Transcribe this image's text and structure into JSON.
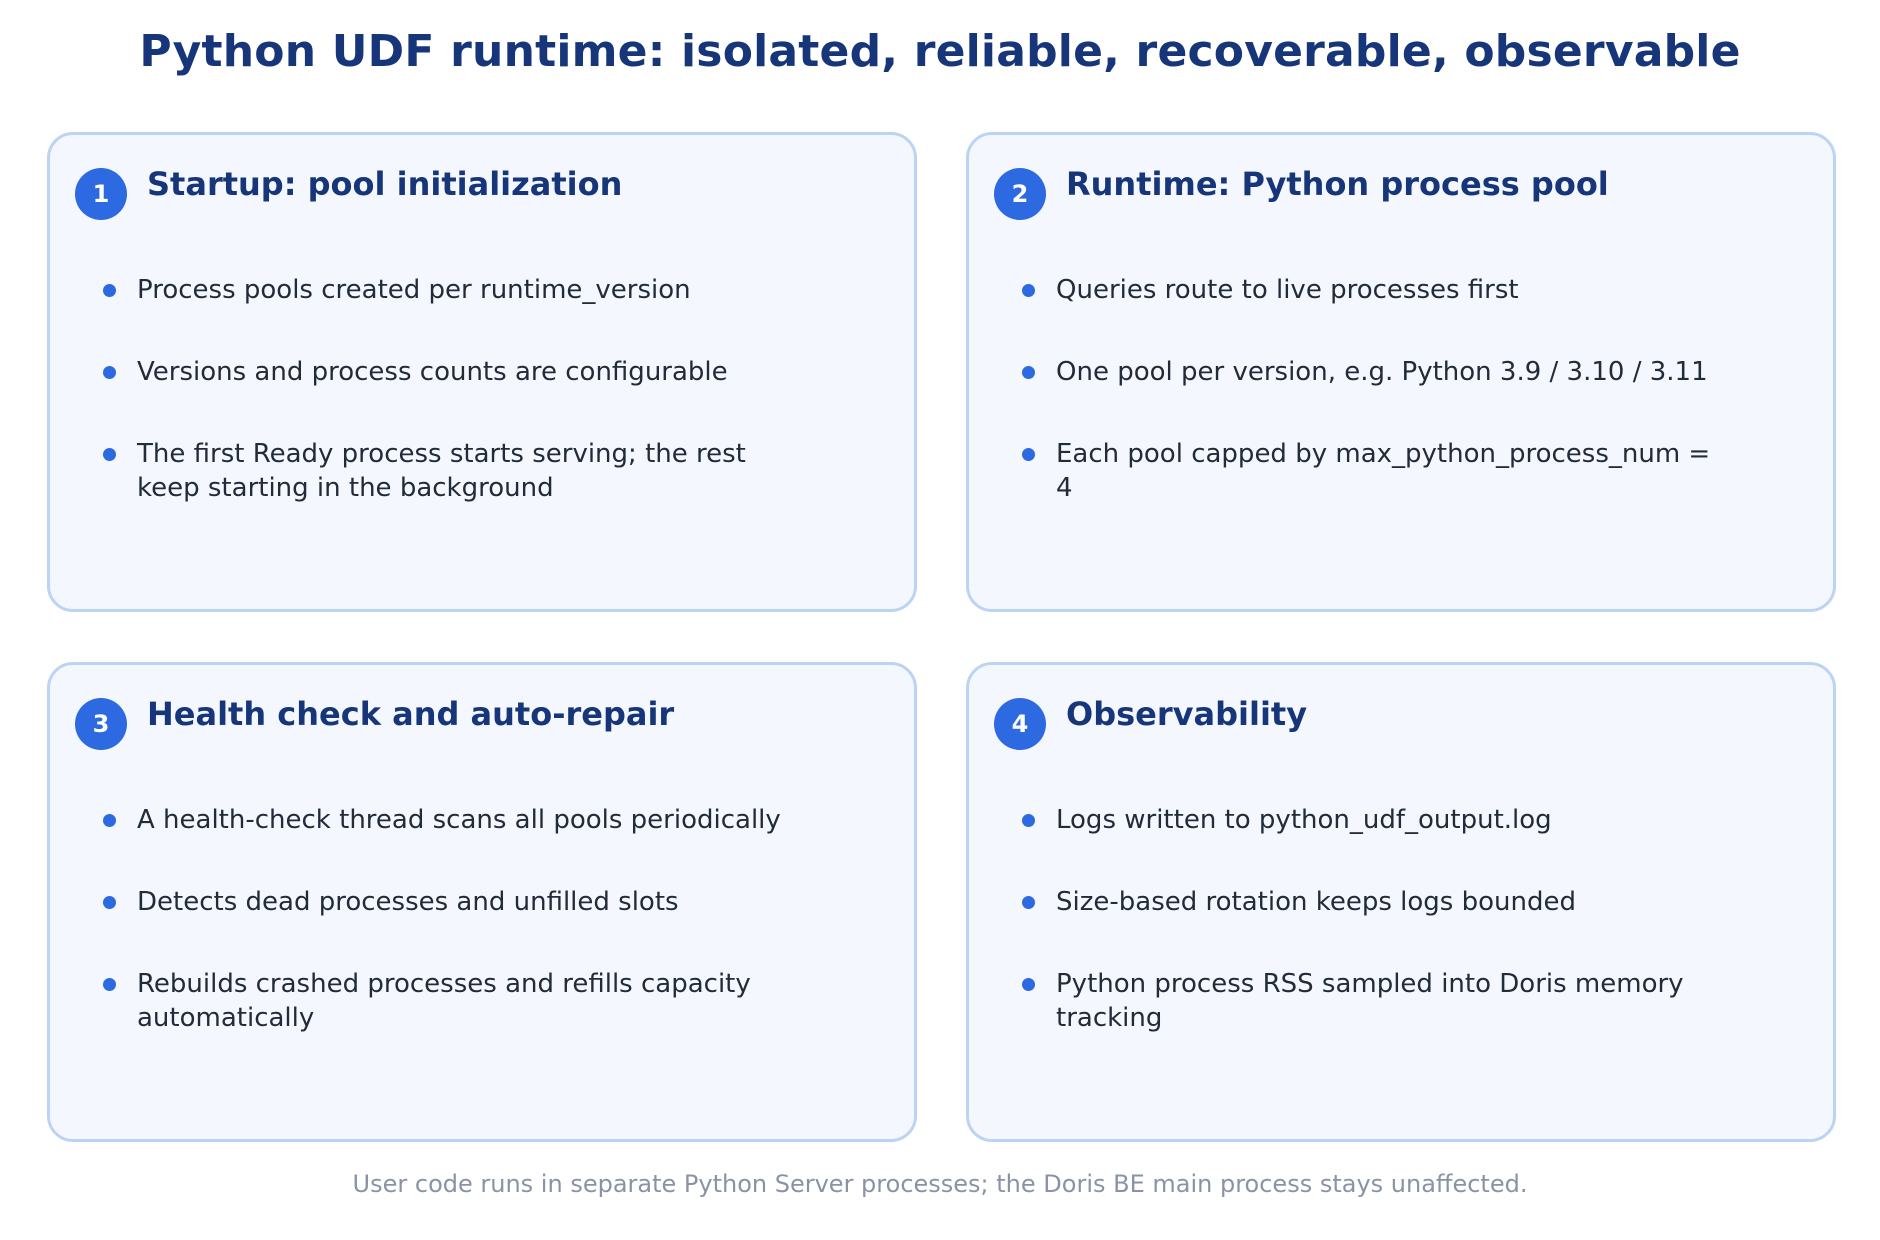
{
  "title": "Python UDF runtime: isolated, reliable, recoverable, observable",
  "cards": [
    {
      "number": "1",
      "title": "Startup: pool initialization",
      "bullets": [
        "Process pools created per runtime_version",
        "Versions and process counts are configurable",
        "The first Ready process starts serving; the rest keep starting in the background"
      ]
    },
    {
      "number": "2",
      "title": "Runtime: Python process pool",
      "bullets": [
        "Queries route to live processes first",
        "One pool per version, e.g. Python 3.9 / 3.10 / 3.11",
        "Each pool capped by max_python_process_num = 4"
      ]
    },
    {
      "number": "3",
      "title": "Health check and auto-repair",
      "bullets": [
        "A health-check thread scans all pools periodically",
        "Detects dead processes and unfilled slots",
        "Rebuilds crashed processes and refills capacity automatically"
      ]
    },
    {
      "number": "4",
      "title": "Observability",
      "bullets": [
        "Logs written to python_udf_output.log",
        "Size-based rotation keeps logs bounded",
        "Python process RSS sampled into Doris memory tracking"
      ]
    }
  ],
  "footer": "User code runs in separate Python Server processes; the Doris BE main process stays unaffected.",
  "colors": {
    "accent": "#2d69e0",
    "title": "#17367a",
    "card_background": "#f4f8fe",
    "card_border": "#bcd3f3",
    "text": "#222b3a",
    "footer": "#8a93a5"
  }
}
